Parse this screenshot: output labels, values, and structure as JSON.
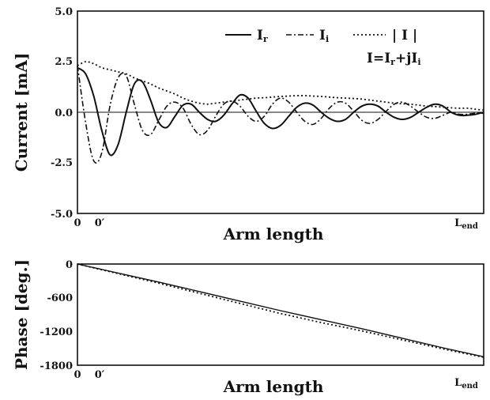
{
  "chart_data": [
    {
      "type": "line",
      "ylabel": "Current [mA]",
      "xlabel": "Arm length",
      "ylim": [
        -5.0,
        5.0
      ],
      "y_ticks": [
        "5.0",
        "2.5",
        "0.0",
        "-2.5",
        "-5.0"
      ],
      "x_tick_labels": [
        "0",
        "0′",
        "L_end"
      ],
      "x_tick_label_end": {
        "main": "L",
        "sub": "end"
      },
      "legend": {
        "placement": "top-right",
        "entries": [
          {
            "main": "I",
            "sub": "r",
            "style": "solid"
          },
          {
            "main": "I",
            "sub": "i",
            "style": "dash-dot"
          },
          {
            "main": "| I |",
            "sub": "",
            "style": "dotted"
          }
        ],
        "equation": "I = I_r + j I_i",
        "equation_parts": {
          "lhs": "I=I",
          "r": "r",
          "mid": "+jI",
          "i": "i"
        }
      },
      "x": [
        0.0,
        0.02,
        0.04,
        0.06,
        0.08,
        0.1,
        0.12,
        0.14,
        0.16,
        0.18,
        0.2,
        0.22,
        0.24,
        0.26,
        0.28,
        0.3,
        0.32,
        0.34,
        0.36,
        0.38,
        0.4,
        0.42,
        0.44,
        0.46,
        0.48,
        0.5,
        0.52,
        0.54,
        0.56,
        0.58,
        0.6,
        0.62,
        0.64,
        0.66,
        0.68,
        0.7,
        0.72,
        0.74,
        0.76,
        0.78,
        0.8,
        0.82,
        0.84,
        0.86,
        0.88,
        0.9,
        0.92,
        0.94,
        0.96,
        0.98,
        1.0
      ],
      "series": [
        {
          "name": "I_r",
          "style": "solid",
          "values": [
            2.2,
            1.9,
            0.8,
            -0.9,
            -2.1,
            -1.6,
            0.0,
            1.4,
            1.5,
            0.6,
            -0.5,
            -0.75,
            -0.2,
            0.35,
            0.4,
            0.0,
            -0.35,
            -0.45,
            -0.15,
            0.4,
            0.85,
            0.7,
            0.05,
            -0.55,
            -0.8,
            -0.65,
            -0.2,
            0.25,
            0.45,
            0.35,
            0.0,
            -0.3,
            -0.45,
            -0.35,
            0.0,
            0.3,
            0.4,
            0.3,
            0.0,
            -0.25,
            -0.35,
            -0.25,
            0.0,
            0.25,
            0.4,
            0.3,
            0.0,
            -0.15,
            -0.15,
            -0.1,
            0.0
          ]
        },
        {
          "name": "I_i",
          "style": "dash-dot",
          "values": [
            2.3,
            -0.5,
            -2.4,
            -2.0,
            0.3,
            1.7,
            1.8,
            0.4,
            -0.9,
            -1.1,
            -0.4,
            0.3,
            0.5,
            0.2,
            -0.6,
            -1.1,
            -0.9,
            -0.2,
            0.4,
            0.55,
            0.3,
            -0.2,
            -0.45,
            -0.2,
            0.4,
            0.7,
            0.5,
            0.0,
            -0.45,
            -0.6,
            -0.3,
            0.2,
            0.5,
            0.45,
            0.05,
            -0.4,
            -0.55,
            -0.35,
            0.05,
            0.4,
            0.5,
            0.3,
            0.0,
            -0.25,
            -0.3,
            -0.15,
            0.0,
            -0.1,
            -0.1,
            -0.05,
            -0.05
          ]
        },
        {
          "name": "|I|",
          "style": "dotted",
          "values": [
            2.3,
            2.5,
            2.4,
            2.2,
            2.1,
            2.0,
            1.9,
            1.7,
            1.55,
            1.4,
            1.2,
            1.05,
            0.9,
            0.7,
            0.55,
            0.45,
            0.4,
            0.45,
            0.5,
            0.55,
            0.6,
            0.65,
            0.7,
            0.72,
            0.75,
            0.78,
            0.8,
            0.82,
            0.82,
            0.8,
            0.78,
            0.75,
            0.72,
            0.7,
            0.68,
            0.65,
            0.6,
            0.55,
            0.5,
            0.45,
            0.42,
            0.4,
            0.35,
            0.3,
            0.28,
            0.25,
            0.22,
            0.2,
            0.2,
            0.15,
            0.1
          ]
        }
      ]
    },
    {
      "type": "line",
      "ylabel": "Phase [deg.]",
      "xlabel": "Arm length",
      "ylim": [
        -1800,
        0
      ],
      "y_ticks": [
        "0",
        "-600",
        "-1200",
        "-1800"
      ],
      "x_tick_labels": [
        "0",
        "0′",
        "L_end"
      ],
      "x_tick_label_end": {
        "main": "L",
        "sub": "end"
      },
      "x": [
        0.0,
        0.1,
        0.2,
        0.3,
        0.4,
        0.5,
        0.6,
        0.7,
        0.8,
        0.9,
        1.0
      ],
      "series": [
        {
          "style": "solid",
          "values": [
            0,
            -160,
            -320,
            -490,
            -660,
            -830,
            -990,
            -1150,
            -1320,
            -1490,
            -1650
          ]
        },
        {
          "style": "dotted",
          "values": [
            0,
            -170,
            -340,
            -520,
            -700,
            -880,
            -1040,
            -1190,
            -1350,
            -1510,
            -1660
          ]
        }
      ]
    }
  ]
}
